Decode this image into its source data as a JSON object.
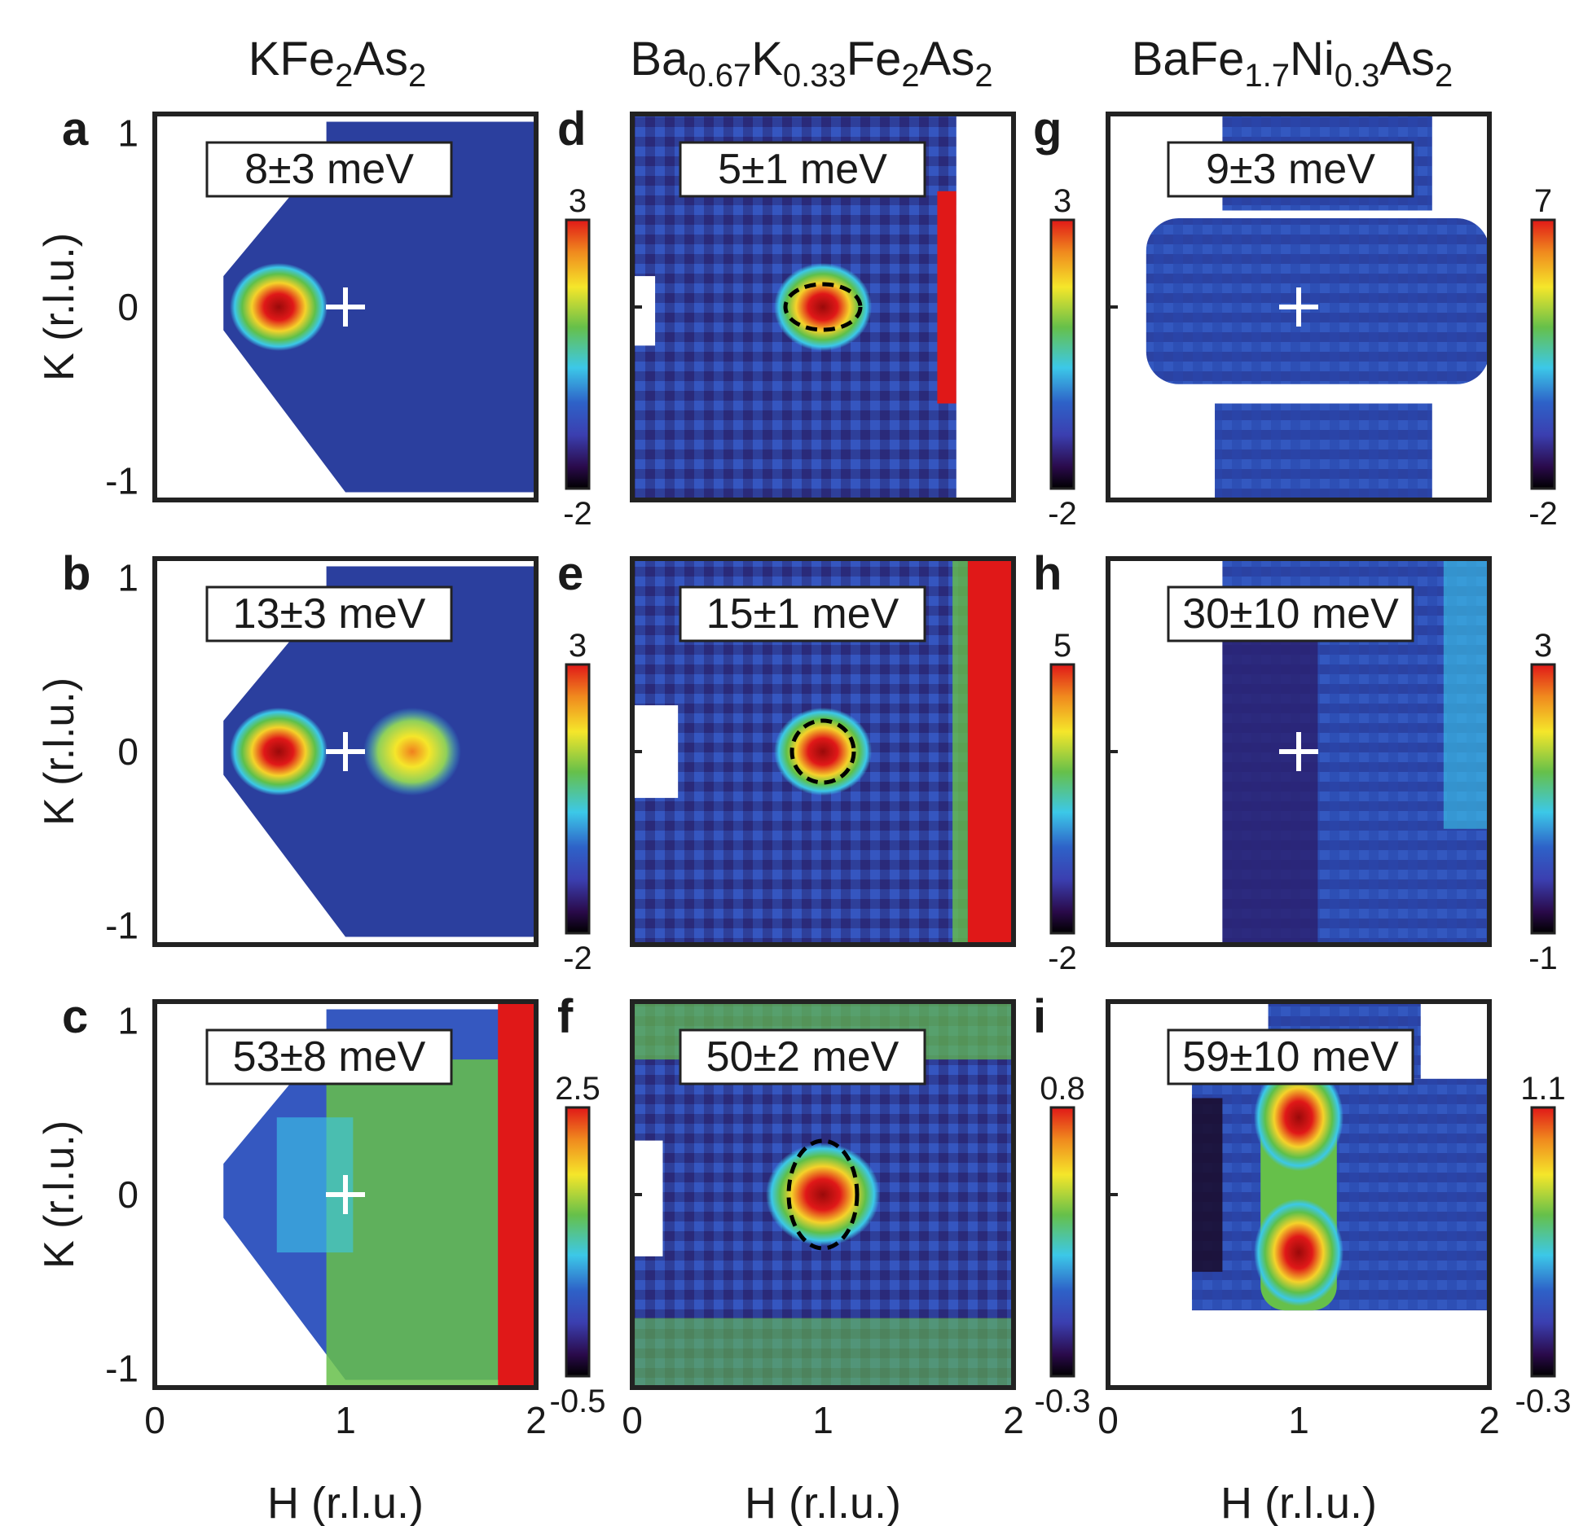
{
  "figure": {
    "compounds": [
      {
        "main": "KFe",
        "sub1": "2",
        "mid": "As",
        "sub2": "2"
      },
      {
        "parts": [
          "Ba",
          "0.67",
          "K",
          "0.33",
          "Fe",
          "2",
          "As",
          "2"
        ]
      },
      {
        "parts": [
          "BaFe",
          "1.7",
          "Ni",
          "0.3",
          "As",
          "2"
        ]
      }
    ],
    "xlabel": "H (r.l.u.)",
    "ylabel": "K (r.l.u.)",
    "xticks": [
      "0",
      "1",
      "2"
    ],
    "yticks": [
      "1",
      "0",
      "-1"
    ]
  },
  "chart_data": [
    {
      "type": "heatmap",
      "panel": "a",
      "compound": "KFe2As2",
      "energy": "8±3 meV",
      "colorbar": {
        "max": "3",
        "min": "-2"
      },
      "xlim": [
        0,
        2
      ],
      "ylim": [
        -1,
        1
      ],
      "marker": "+ at (1,0)",
      "peaks": [
        {
          "h": 0.65,
          "k": 0.0,
          "intensity": "max"
        }
      ]
    },
    {
      "type": "heatmap",
      "panel": "b",
      "compound": "KFe2As2",
      "energy": "13±3 meV",
      "colorbar": {
        "max": "3",
        "min": "-2"
      },
      "xlim": [
        0,
        2
      ],
      "ylim": [
        -1,
        1
      ],
      "marker": "+ at (1,0)",
      "peaks": [
        {
          "h": 0.65,
          "k": 0.0
        },
        {
          "h": 1.35,
          "k": 0.0
        }
      ]
    },
    {
      "type": "heatmap",
      "panel": "c",
      "compound": "KFe2As2",
      "energy": "53±8 meV",
      "colorbar": {
        "max": "2.5",
        "min": "-0.5"
      },
      "xlim": [
        0,
        2
      ],
      "ylim": [
        -1,
        1
      ],
      "marker": "+ at (1,0)"
    },
    {
      "type": "heatmap",
      "panel": "d",
      "compound": "Ba0.67K0.33Fe2As2",
      "energy": "5±1 meV",
      "colorbar": {
        "max": "3",
        "min": "-2"
      },
      "xlim": [
        0,
        2
      ],
      "ylim": [
        -1,
        1
      ],
      "peaks": [
        {
          "h": 1.0,
          "k": 0.0
        }
      ]
    },
    {
      "type": "heatmap",
      "panel": "e",
      "compound": "Ba0.67K0.33Fe2As2",
      "energy": "15±1 meV",
      "colorbar": {
        "max": "5",
        "min": "-2"
      },
      "xlim": [
        0,
        2
      ],
      "ylim": [
        -1,
        1
      ],
      "peaks": [
        {
          "h": 1.0,
          "k": 0.0
        }
      ]
    },
    {
      "type": "heatmap",
      "panel": "f",
      "compound": "Ba0.67K0.33Fe2As2",
      "energy": "50±2 meV",
      "colorbar": {
        "max": "0.8",
        "min": "-0.3"
      },
      "xlim": [
        0,
        2
      ],
      "ylim": [
        -1,
        1
      ],
      "peaks": [
        {
          "h": 1.0,
          "k": 0.0
        }
      ]
    },
    {
      "type": "heatmap",
      "panel": "g",
      "compound": "BaFe1.7Ni0.3As2",
      "energy": "9±3 meV",
      "colorbar": {
        "max": "7",
        "min": "-2"
      },
      "xlim": [
        0,
        2
      ],
      "ylim": [
        -1,
        1
      ],
      "marker": "+ at (1,0)"
    },
    {
      "type": "heatmap",
      "panel": "h",
      "compound": "BaFe1.7Ni0.3As2",
      "energy": "30±10 meV",
      "colorbar": {
        "max": "3",
        "min": "-1"
      },
      "xlim": [
        0,
        2
      ],
      "ylim": [
        -1,
        1
      ],
      "marker": "+ at (1,0)"
    },
    {
      "type": "heatmap",
      "panel": "i",
      "compound": "BaFe1.7Ni0.3As2",
      "energy": "59±10 meV",
      "colorbar": {
        "max": "1.1",
        "min": "-0.3"
      },
      "xlim": [
        0,
        2
      ],
      "ylim": [
        -1,
        1
      ],
      "peaks": [
        {
          "h": 1.0,
          "k": 0.4
        },
        {
          "h": 1.0,
          "k": -0.3
        }
      ]
    }
  ]
}
